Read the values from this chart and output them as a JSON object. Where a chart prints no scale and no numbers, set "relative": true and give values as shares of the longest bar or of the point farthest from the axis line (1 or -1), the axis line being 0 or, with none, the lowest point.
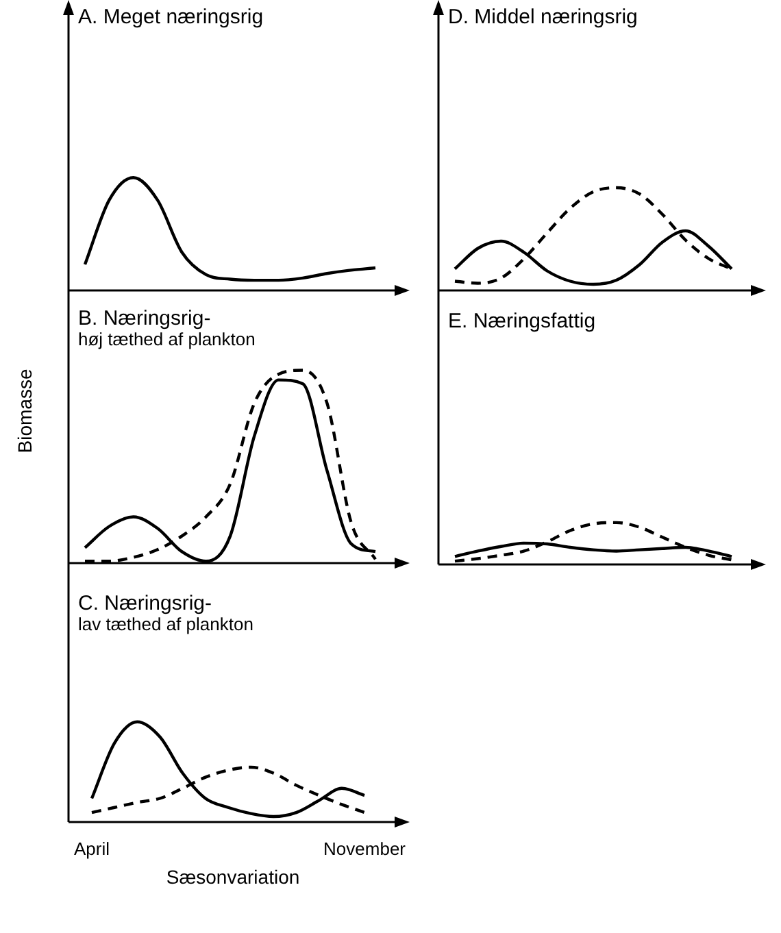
{
  "chart_data": [
    {
      "type": "line",
      "title": "A. Meget næringsrig",
      "relative": true,
      "tick_labels": false,
      "categories": [
        null,
        null,
        null,
        null,
        null,
        null,
        null,
        null,
        null,
        null,
        null,
        null,
        null
      ],
      "series": [
        {
          "color": "#000000",
          "line_style": "solid",
          "values": [
            0.23,
            0.8,
            1,
            0.8,
            0.34,
            0.14,
            0.1,
            0.09,
            0.09,
            0.11,
            0.15,
            0.18,
            0.2
          ]
        }
      ]
    },
    {
      "type": "line",
      "title": "B. Næringsrig-",
      "subtitle": "høj tæthed af plankton",
      "ylabel": "Biomasse",
      "relative": true,
      "tick_labels": false,
      "categories": [
        null,
        null,
        null,
        null,
        null,
        null,
        null,
        null,
        null,
        null,
        null,
        null,
        null
      ],
      "series": [
        {
          "color": "#000000",
          "line_style": "solid",
          "values": [
            0.08,
            0.19,
            0.24,
            0.18,
            0.06,
            0.01,
            0.14,
            0.66,
            0.95,
            0.93,
            0.48,
            0.1,
            0.06
          ]
        },
        {
          "color": "#000000",
          "line_style": "dashed",
          "values": [
            0.01,
            0.01,
            0.03,
            0.07,
            0.14,
            0.24,
            0.41,
            0.83,
            0.98,
            1,
            0.83,
            0.21,
            0.02
          ]
        }
      ]
    },
    {
      "type": "line",
      "title": "C. Næringsrig-",
      "subtitle": "lav tæthed af plankton",
      "xlabel": "Sæsonvariation",
      "relative": true,
      "tick_labels": "x",
      "categories": [
        "April",
        null,
        null,
        null,
        null,
        null,
        null,
        null,
        null,
        null,
        null,
        null,
        "November"
      ],
      "series": [
        {
          "color": "#000000",
          "line_style": "solid",
          "values": [
            0.24,
            0.79,
            1,
            0.85,
            0.49,
            0.24,
            0.15,
            0.09,
            0.06,
            0.1,
            0.22,
            0.34,
            0.27
          ]
        },
        {
          "color": "#000000",
          "line_style": "dashed",
          "values": [
            0.1,
            0.15,
            0.2,
            0.24,
            0.34,
            0.45,
            0.52,
            0.55,
            0.49,
            0.37,
            0.27,
            0.18,
            0.1
          ]
        }
      ]
    },
    {
      "type": "line",
      "title": "D. Middel næringsrig",
      "relative": true,
      "tick_labels": false,
      "categories": [
        null,
        null,
        null,
        null,
        null,
        null,
        null,
        null,
        null,
        null,
        null,
        null,
        null
      ],
      "series": [
        {
          "color": "#000000",
          "line_style": "solid",
          "values": [
            0.21,
            0.41,
            0.48,
            0.37,
            0.19,
            0.09,
            0.06,
            0.1,
            0.25,
            0.47,
            0.58,
            0.43,
            0.21
          ]
        },
        {
          "color": "#000000",
          "line_style": "dashed",
          "values": [
            0.09,
            0.07,
            0.12,
            0.31,
            0.56,
            0.8,
            0.96,
            1,
            0.94,
            0.74,
            0.49,
            0.31,
            0.21
          ]
        }
      ]
    },
    {
      "type": "line",
      "title": "E. Næringsfattig",
      "relative": true,
      "tick_labels": false,
      "categories": [
        null,
        null,
        null,
        null,
        null,
        null,
        null,
        null,
        null,
        null,
        null,
        null,
        null
      ],
      "series": [
        {
          "color": "#000000",
          "line_style": "solid",
          "values": [
            0.19,
            0.32,
            0.43,
            0.51,
            0.49,
            0.41,
            0.35,
            0.32,
            0.35,
            0.38,
            0.41,
            0.32,
            0.19
          ]
        },
        {
          "color": "#000000",
          "line_style": "dashed",
          "values": [
            0.08,
            0.14,
            0.22,
            0.32,
            0.54,
            0.81,
            0.97,
            1,
            0.89,
            0.65,
            0.41,
            0.22,
            0.11
          ]
        }
      ]
    }
  ]
}
